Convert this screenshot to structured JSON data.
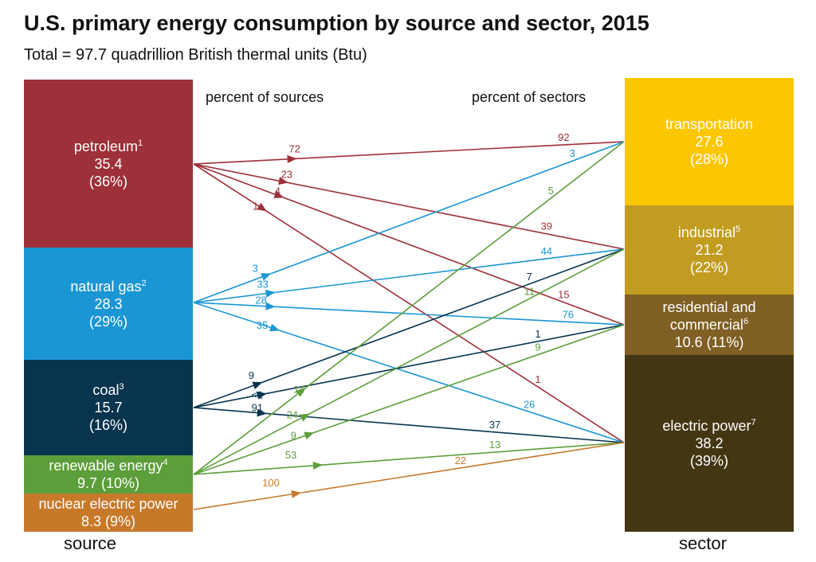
{
  "title": "U.S. primary energy consumption by source and sector, 2015",
  "subtitle": "Total = 97.7 quadrillion British thermal units (Btu)",
  "col_heads": {
    "sources": "percent of sources",
    "sectors": "percent of sectors"
  },
  "axis_labels": {
    "source": "source",
    "sector": "sector"
  },
  "sources": [
    {
      "key": "petroleum",
      "name": "petroleum",
      "footnote": "1",
      "value": "35.4",
      "share": "(36%)",
      "color": "#9e3039"
    },
    {
      "key": "natural_gas",
      "name": "natural gas",
      "footnote": "2",
      "value": "28.3",
      "share": "(29%)",
      "color": "#1a96d4"
    },
    {
      "key": "coal",
      "name": "coal",
      "footnote": "3",
      "value": "15.7",
      "share": "(16%)",
      "color": "#08344e"
    },
    {
      "key": "renewable",
      "name": "renewable energy",
      "footnote": "4",
      "value": "9.7 (10%)",
      "color": "#5c9e3a"
    },
    {
      "key": "nuclear",
      "name": "nuclear electric power",
      "value": "8.3 (9%)",
      "color": "#c7792a"
    }
  ],
  "sectors": [
    {
      "key": "transportation",
      "name": "transportation",
      "value": "27.6",
      "share": "(28%)",
      "color": "#fdc700"
    },
    {
      "key": "industrial",
      "name": "industrial",
      "footnote": "5",
      "value": "21.2",
      "share": "(22%)",
      "color": "#c19c20"
    },
    {
      "key": "res_com",
      "name": "residential and",
      "name2": "commercial",
      "footnote": "6",
      "value": "10.6 (11%)",
      "color": "#7f5f23"
    },
    {
      "key": "electric",
      "name": "electric power",
      "footnote": "7",
      "value": "38.2",
      "share": "(39%)",
      "color": "#433713"
    }
  ],
  "flows": [
    {
      "source": "petroleum",
      "sector": "transportation",
      "src_pct": "72",
      "sec_pct": "92"
    },
    {
      "source": "petroleum",
      "sector": "industrial",
      "src_pct": "23",
      "sec_pct": "39"
    },
    {
      "source": "petroleum",
      "sector": "res_com",
      "src_pct": "4",
      "sec_pct": "15"
    },
    {
      "source": "petroleum",
      "sector": "electric",
      "src_pct": "1",
      "sec_pct": "1"
    },
    {
      "source": "natural_gas",
      "sector": "transportation",
      "src_pct": "3",
      "sec_pct": "3"
    },
    {
      "source": "natural_gas",
      "sector": "industrial",
      "src_pct": "33",
      "sec_pct": "44"
    },
    {
      "source": "natural_gas",
      "sector": "res_com",
      "src_pct": "28",
      "sec_pct": "76"
    },
    {
      "source": "natural_gas",
      "sector": "electric",
      "src_pct": "35",
      "sec_pct": "26"
    },
    {
      "source": "coal",
      "sector": "industrial",
      "src_pct": "9",
      "sec_pct": "7"
    },
    {
      "source": "coal",
      "sector": "res_com",
      "src_pct": "<1",
      "sec_pct": "1"
    },
    {
      "source": "coal",
      "sector": "electric",
      "src_pct": "91",
      "sec_pct": "37"
    },
    {
      "source": "renewable",
      "sector": "transportation",
      "src_pct": "14",
      "sec_pct": "5"
    },
    {
      "source": "renewable",
      "sector": "industrial",
      "src_pct": "24",
      "sec_pct": "11"
    },
    {
      "source": "renewable",
      "sector": "res_com",
      "src_pct": "9",
      "sec_pct": "9"
    },
    {
      "source": "renewable",
      "sector": "electric",
      "src_pct": "53",
      "sec_pct": "13"
    },
    {
      "source": "nuclear",
      "sector": "electric",
      "src_pct": "100",
      "sec_pct": "22"
    }
  ]
}
